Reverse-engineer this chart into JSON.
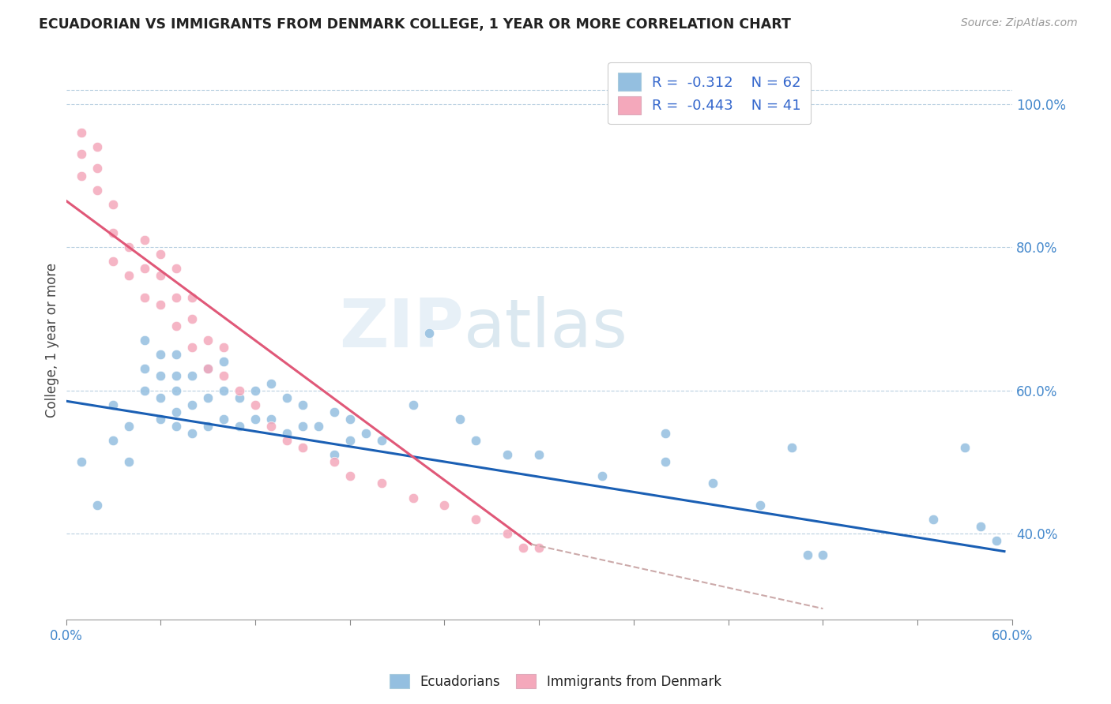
{
  "title": "ECUADORIAN VS IMMIGRANTS FROM DENMARK COLLEGE, 1 YEAR OR MORE CORRELATION CHART",
  "source": "Source: ZipAtlas.com",
  "ylabel": "College, 1 year or more",
  "ylabel_right_ticks": [
    "40.0%",
    "60.0%",
    "80.0%",
    "100.0%"
  ],
  "ylabel_right_values": [
    0.4,
    0.6,
    0.8,
    1.0
  ],
  "xmin": 0.0,
  "xmax": 0.6,
  "ymin": 0.28,
  "ymax": 1.06,
  "legend_R1": "R =  -0.312",
  "legend_N1": "N = 62",
  "legend_R2": "R =  -0.443",
  "legend_N2": "N = 41",
  "color_blue": "#94bfe0",
  "color_pink": "#f4a8bb",
  "color_blue_line": "#1a5fb4",
  "color_pink_line": "#e05878",
  "color_dashed": "#ccaaaa",
  "watermark_zip": "ZIP",
  "watermark_atlas": "atlas",
  "blue_scatter_x": [
    0.01,
    0.02,
    0.03,
    0.03,
    0.04,
    0.04,
    0.05,
    0.05,
    0.05,
    0.06,
    0.06,
    0.06,
    0.06,
    0.07,
    0.07,
    0.07,
    0.07,
    0.07,
    0.08,
    0.08,
    0.08,
    0.09,
    0.09,
    0.09,
    0.1,
    0.1,
    0.1,
    0.11,
    0.11,
    0.12,
    0.12,
    0.13,
    0.13,
    0.14,
    0.14,
    0.15,
    0.15,
    0.16,
    0.17,
    0.17,
    0.18,
    0.18,
    0.19,
    0.2,
    0.22,
    0.23,
    0.25,
    0.26,
    0.28,
    0.3,
    0.34,
    0.38,
    0.38,
    0.41,
    0.44,
    0.46,
    0.47,
    0.48,
    0.55,
    0.57,
    0.58,
    0.59
  ],
  "blue_scatter_y": [
    0.5,
    0.44,
    0.53,
    0.58,
    0.5,
    0.55,
    0.6,
    0.63,
    0.67,
    0.56,
    0.59,
    0.62,
    0.65,
    0.55,
    0.57,
    0.6,
    0.62,
    0.65,
    0.54,
    0.58,
    0.62,
    0.55,
    0.59,
    0.63,
    0.56,
    0.6,
    0.64,
    0.55,
    0.59,
    0.56,
    0.6,
    0.56,
    0.61,
    0.54,
    0.59,
    0.55,
    0.58,
    0.55,
    0.51,
    0.57,
    0.53,
    0.56,
    0.54,
    0.53,
    0.58,
    0.68,
    0.56,
    0.53,
    0.51,
    0.51,
    0.48,
    0.5,
    0.54,
    0.47,
    0.44,
    0.52,
    0.37,
    0.37,
    0.42,
    0.52,
    0.41,
    0.39
  ],
  "pink_scatter_x": [
    0.01,
    0.01,
    0.01,
    0.02,
    0.02,
    0.02,
    0.03,
    0.03,
    0.03,
    0.04,
    0.04,
    0.05,
    0.05,
    0.05,
    0.06,
    0.06,
    0.06,
    0.07,
    0.07,
    0.07,
    0.08,
    0.08,
    0.08,
    0.09,
    0.09,
    0.1,
    0.1,
    0.11,
    0.12,
    0.13,
    0.14,
    0.15,
    0.17,
    0.18,
    0.2,
    0.22,
    0.24,
    0.26,
    0.28,
    0.29,
    0.3
  ],
  "pink_scatter_y": [
    0.9,
    0.93,
    0.96,
    0.88,
    0.91,
    0.94,
    0.78,
    0.82,
    0.86,
    0.76,
    0.8,
    0.73,
    0.77,
    0.81,
    0.72,
    0.76,
    0.79,
    0.69,
    0.73,
    0.77,
    0.66,
    0.7,
    0.73,
    0.63,
    0.67,
    0.62,
    0.66,
    0.6,
    0.58,
    0.55,
    0.53,
    0.52,
    0.5,
    0.48,
    0.47,
    0.45,
    0.44,
    0.42,
    0.4,
    0.38,
    0.38
  ],
  "blue_line_x": [
    0.0,
    0.595
  ],
  "blue_line_y": [
    0.585,
    0.375
  ],
  "pink_line_x": [
    0.0,
    0.295
  ],
  "pink_line_y": [
    0.865,
    0.385
  ],
  "dashed_line_x": [
    0.295,
    0.48
  ],
  "dashed_line_y": [
    0.385,
    0.295
  ]
}
